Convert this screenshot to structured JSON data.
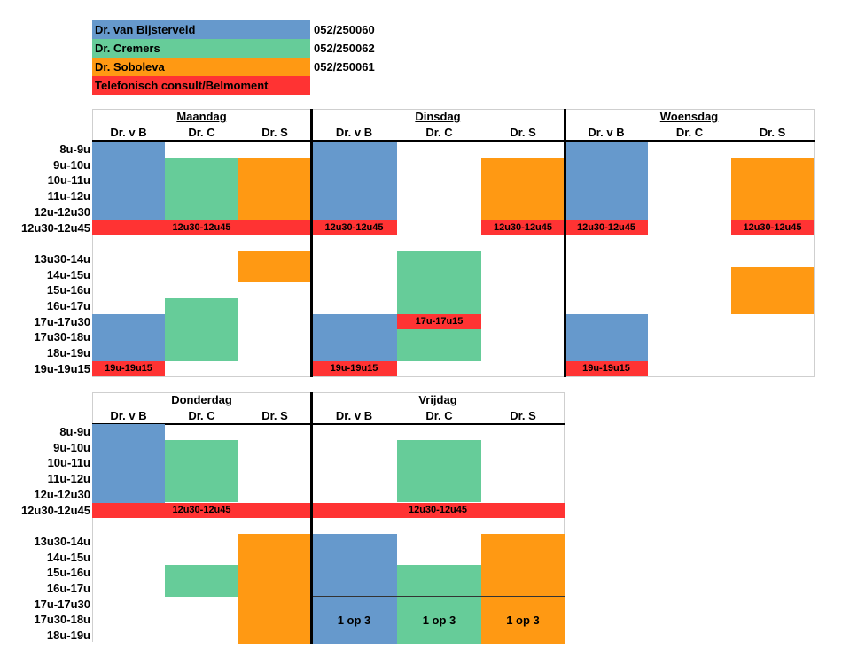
{
  "legend": [
    {
      "name": "Dr. van Bijsterveld",
      "phone": "052/250060",
      "color": "#6699CC"
    },
    {
      "name": "Dr. Cremers",
      "phone": "052/250062",
      "color": "#66CC99"
    },
    {
      "name": "Dr. Soboleva",
      "phone": "052/250061",
      "color": "#FF9913"
    },
    {
      "name": "Telefonisch consult/Belmoment",
      "phone": "",
      "color": "#FF3333"
    }
  ],
  "doctors": [
    "Dr. v B",
    "Dr. C",
    "Dr. S"
  ],
  "days": {
    "maandag": "Maandag",
    "dinsdag": "Dinsdag",
    "woensdag": "Woensdag",
    "donderdag": "Donderdag",
    "vrijdag": "Vrijdag"
  },
  "times_top": [
    "8u-9u",
    "9u-10u",
    "10u-11u",
    "11u-12u",
    "12u-12u30",
    "12u30-12u45",
    "",
    "13u30-14u",
    "14u-15u",
    "15u-16u",
    "16u-17u",
    "17u-17u30",
    "17u30-18u",
    "18u-19u",
    "19u-19u15"
  ],
  "times_bottom": [
    "8u-9u",
    "9u-10u",
    "10u-11u",
    "11u-12u",
    "12u-12u30",
    "12u30-12u45",
    "",
    "13u30-14u",
    "14u-15u",
    "15u-16u",
    "16u-17u",
    "17u-17u30",
    "17u30-18u",
    "18u-19u"
  ],
  "red_labels": {
    "lunch": "12u30-12u45",
    "evening": "19u-19u15",
    "tue_afternoon": "17u-17u15"
  },
  "rotation_label": "1 op 3"
}
